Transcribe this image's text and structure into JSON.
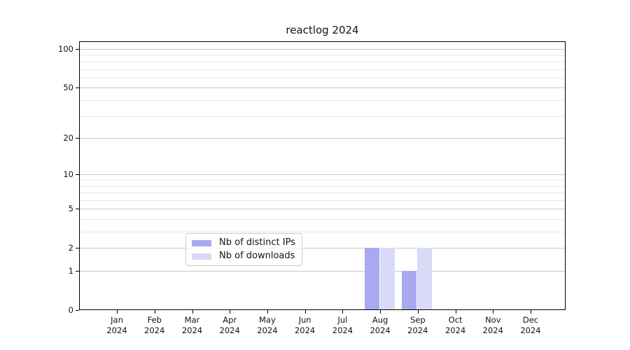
{
  "title": "reactlog 2024",
  "colors": {
    "distinct_ips_bar": "#a9a9f0",
    "downloads_bar": "#d9d9f8",
    "axis": "#000000",
    "major_grid": "#c9c9c9",
    "minor_grid": "#e7e7e7",
    "text": "#141414",
    "legend_border": "#cccccc",
    "background": "#ffffff"
  },
  "chart_data": {
    "type": "bar",
    "title": "reactlog 2024",
    "categories": [
      "Jan",
      "Feb",
      "Mar",
      "Apr",
      "May",
      "Jun",
      "Jul",
      "Aug",
      "Sep",
      "Oct",
      "Nov",
      "Dec"
    ],
    "category_year": "2024",
    "series": [
      {
        "name": "Nb of distinct IPs",
        "color": "#a9a9f0",
        "values": [
          0,
          0,
          0,
          0,
          0,
          0,
          0,
          2,
          1,
          0,
          0,
          0
        ]
      },
      {
        "name": "Nb of downloads",
        "color": "#d9d9f8",
        "values": [
          0,
          0,
          0,
          0,
          0,
          0,
          0,
          2,
          2,
          0,
          0,
          0
        ]
      }
    ],
    "xlabel": "",
    "ylabel": "",
    "yscale": "log1p",
    "ylim": [
      0,
      115
    ],
    "y_major_ticks": [
      0,
      1,
      2,
      5,
      10,
      20,
      50,
      100
    ],
    "y_minor_ticks": [
      3,
      4,
      6,
      7,
      8,
      9,
      30,
      40,
      60,
      70,
      80,
      90
    ],
    "grid": "horizontal, major and minor",
    "legend_position": "inside plot, lower center-left"
  },
  "legend": {
    "items": [
      "Nb of distinct IPs",
      "Nb of downloads"
    ]
  }
}
